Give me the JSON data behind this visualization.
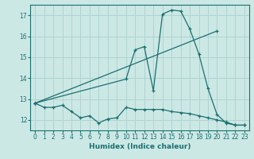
{
  "xlabel": "Humidex (Indice chaleur)",
  "ylabel": "",
  "background_color": "#cce8e5",
  "grid_color": "#afd4d0",
  "line_color": "#1a7070",
  "xlim": [
    -0.5,
    23.5
  ],
  "ylim": [
    11.5,
    17.5
  ],
  "xticks": [
    0,
    1,
    2,
    3,
    4,
    5,
    6,
    7,
    8,
    9,
    10,
    11,
    12,
    13,
    14,
    15,
    16,
    17,
    18,
    19,
    20,
    21,
    22,
    23
  ],
  "yticks": [
    12,
    13,
    14,
    15,
    16,
    17
  ],
  "series": [
    {
      "x": [
        0,
        1,
        2,
        3,
        4,
        5,
        6,
        7,
        8,
        9,
        10,
        11,
        12,
        13,
        14,
        15,
        16,
        17,
        18,
        19,
        20,
        21,
        22,
        23
      ],
      "y": [
        12.8,
        12.6,
        12.6,
        12.7,
        12.4,
        12.1,
        12.2,
        11.85,
        12.05,
        12.1,
        12.6,
        12.5,
        12.5,
        12.5,
        12.5,
        12.4,
        12.35,
        12.3,
        12.2,
        12.1,
        12.0,
        11.9,
        11.75,
        11.75
      ]
    },
    {
      "x": [
        0,
        10,
        11,
        12,
        13,
        14,
        15,
        16,
        17,
        18,
        19,
        20,
        21,
        22,
        23
      ],
      "y": [
        12.8,
        13.95,
        15.35,
        15.5,
        13.4,
        17.05,
        17.25,
        17.2,
        16.35,
        15.15,
        13.5,
        12.25,
        11.85,
        11.75,
        11.75
      ]
    },
    {
      "x": [
        0,
        20
      ],
      "y": [
        12.8,
        16.25
      ]
    }
  ]
}
